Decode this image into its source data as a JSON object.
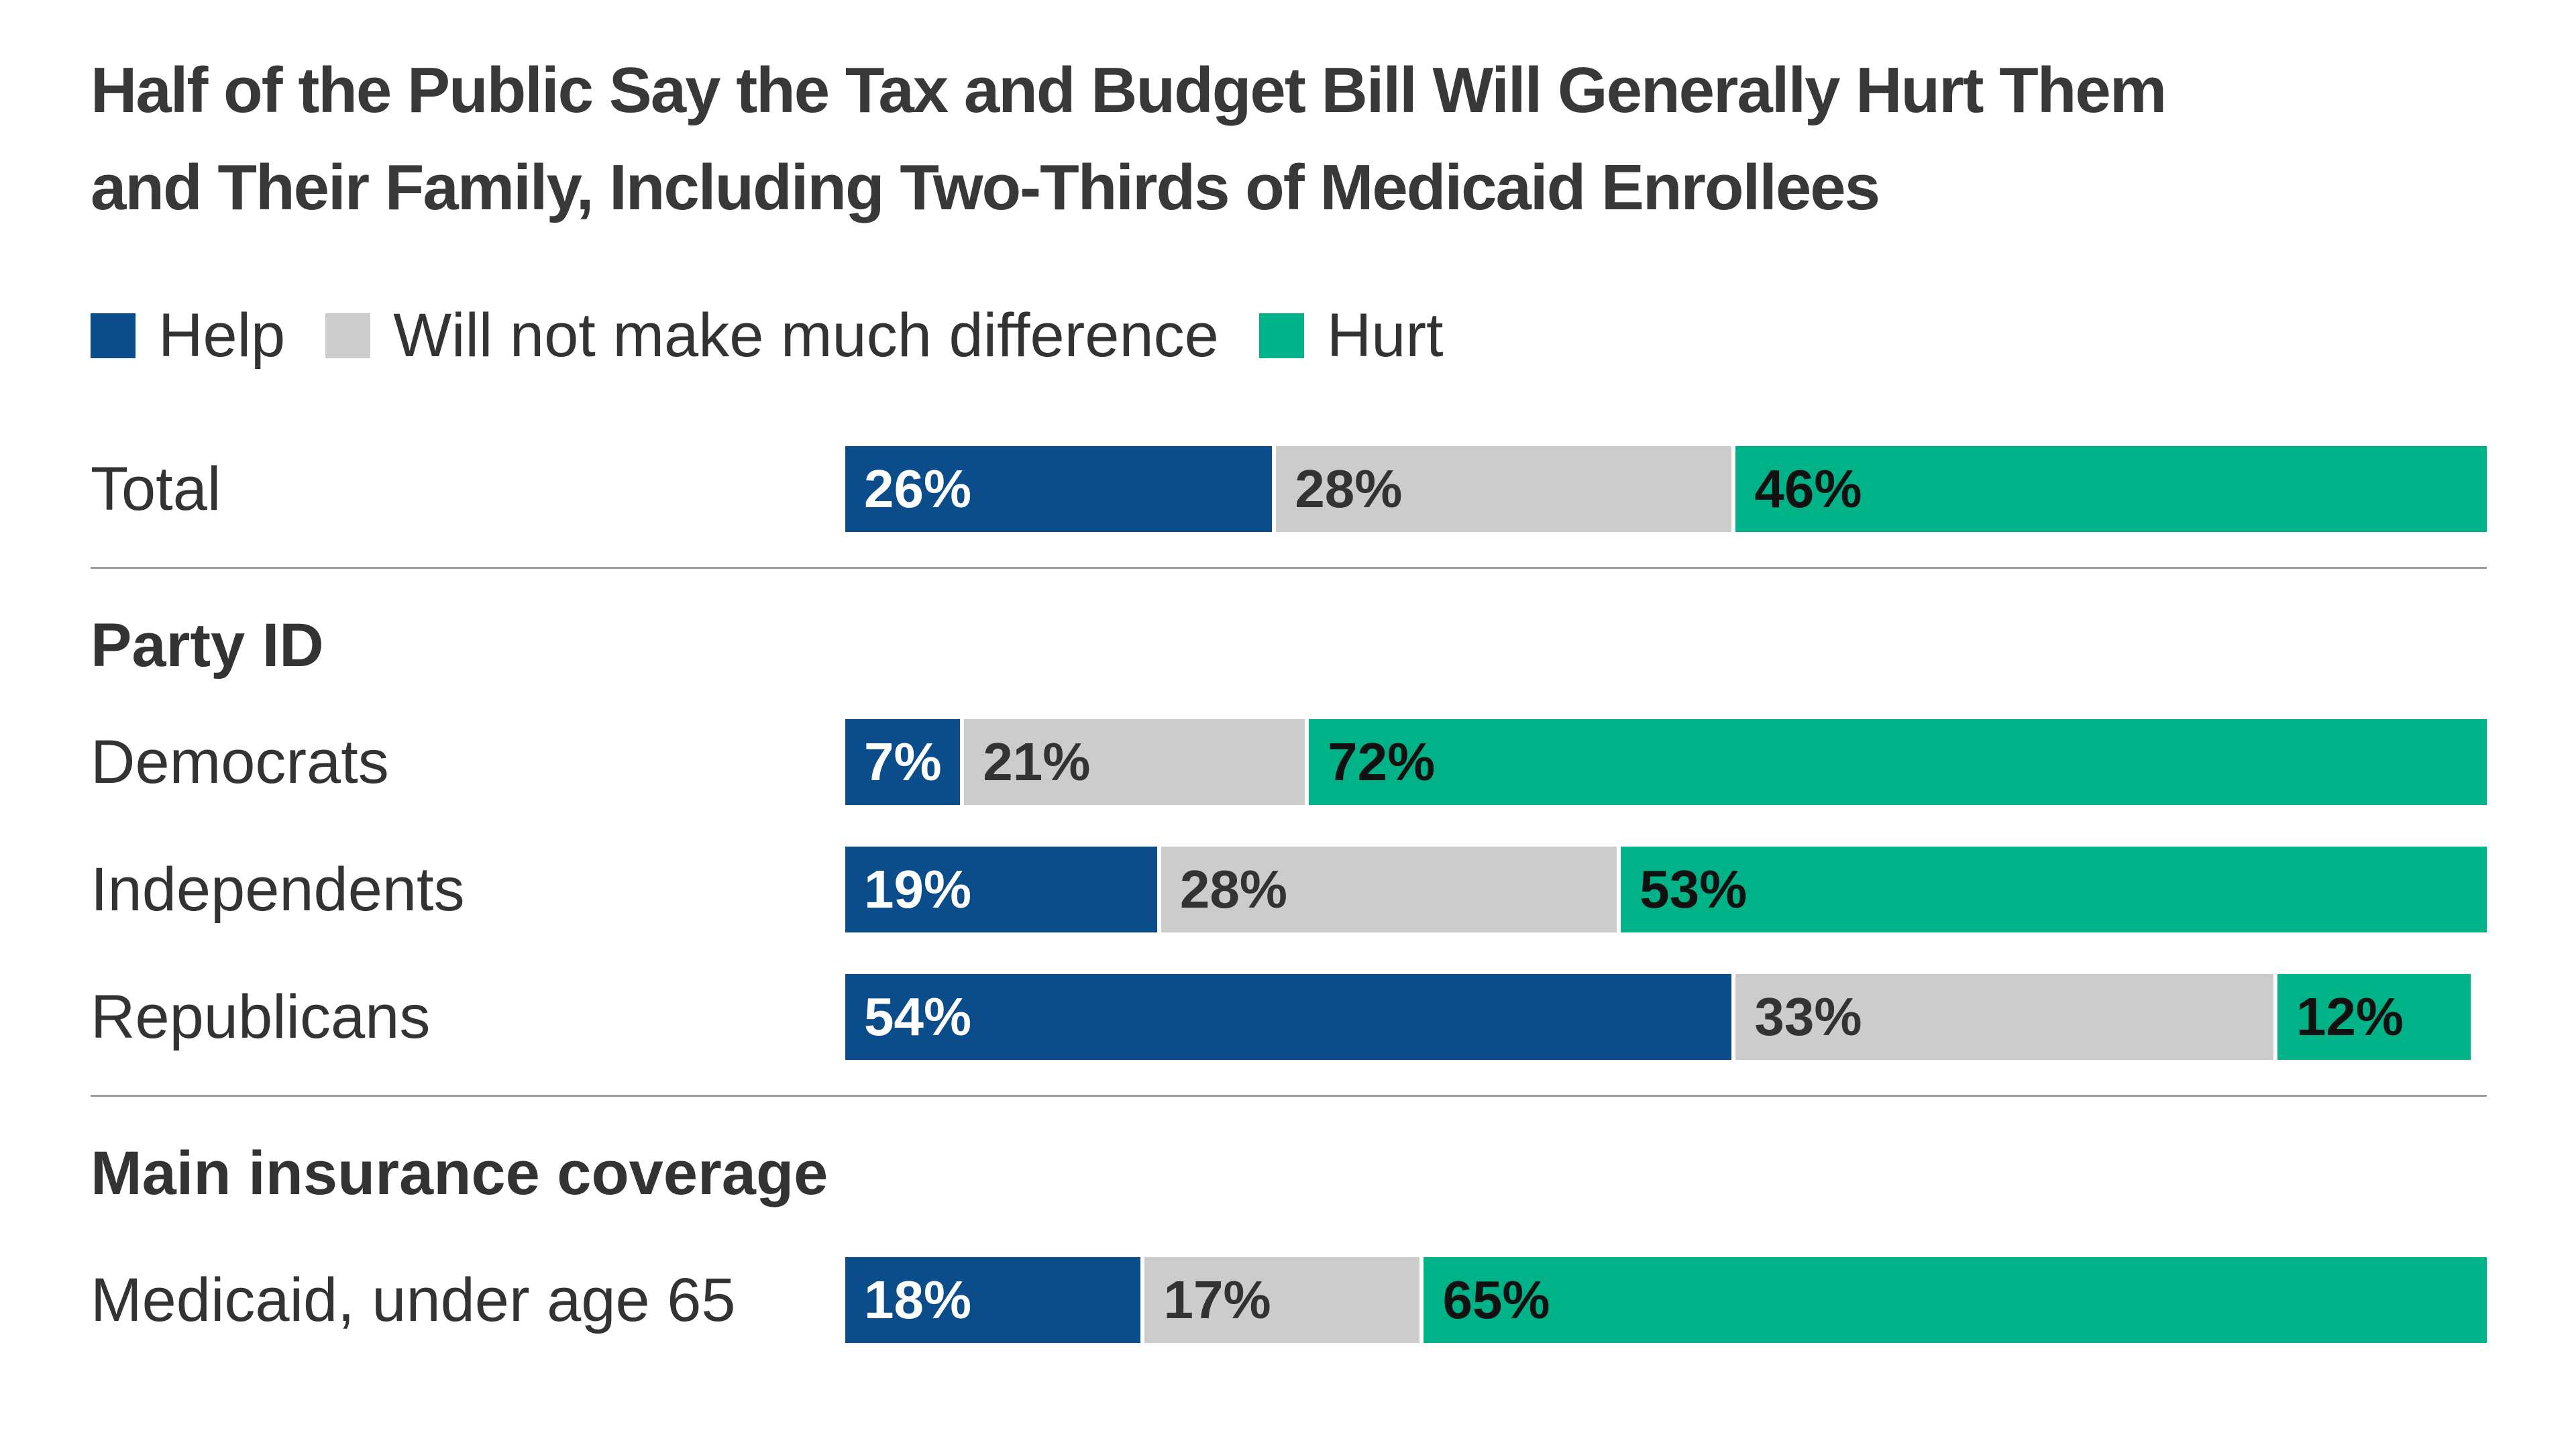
{
  "title": {
    "line1": "Half of the Public Say the Tax and Budget Bill Will Generally Hurt Them",
    "line2": "and Their Family, Including Two-Thirds of Medicaid Enrollees"
  },
  "chart_data": {
    "type": "bar",
    "stacked": true,
    "orientation": "horizontal",
    "unit": "%",
    "x_max": 100,
    "legend_position": "top-left",
    "series": [
      {
        "key": "help",
        "name": "Help",
        "color": "#0b4d8b",
        "value_label_color": "#ffffff"
      },
      {
        "key": "no-difference",
        "name": "Will not make much difference",
        "color": "#cccccc",
        "value_label_color": "#333333"
      },
      {
        "key": "hurt",
        "name": "Hurt",
        "color": "#00b287",
        "value_label_color": "#111111"
      }
    ],
    "groups": [
      {
        "section": null,
        "rows": [
          {
            "label": "Total",
            "values": [
              26,
              28,
              46
            ]
          }
        ]
      },
      {
        "section": "Party ID",
        "rows": [
          {
            "label": "Democrats",
            "values": [
              7,
              21,
              72
            ]
          },
          {
            "label": "Independents",
            "values": [
              19,
              28,
              53
            ]
          },
          {
            "label": "Republicans",
            "values": [
              54,
              33,
              12
            ]
          }
        ]
      },
      {
        "section": "Main insurance coverage",
        "rows": [
          {
            "label": "Medicaid, under age 65",
            "values": [
              18,
              17,
              65
            ]
          }
        ]
      }
    ]
  }
}
